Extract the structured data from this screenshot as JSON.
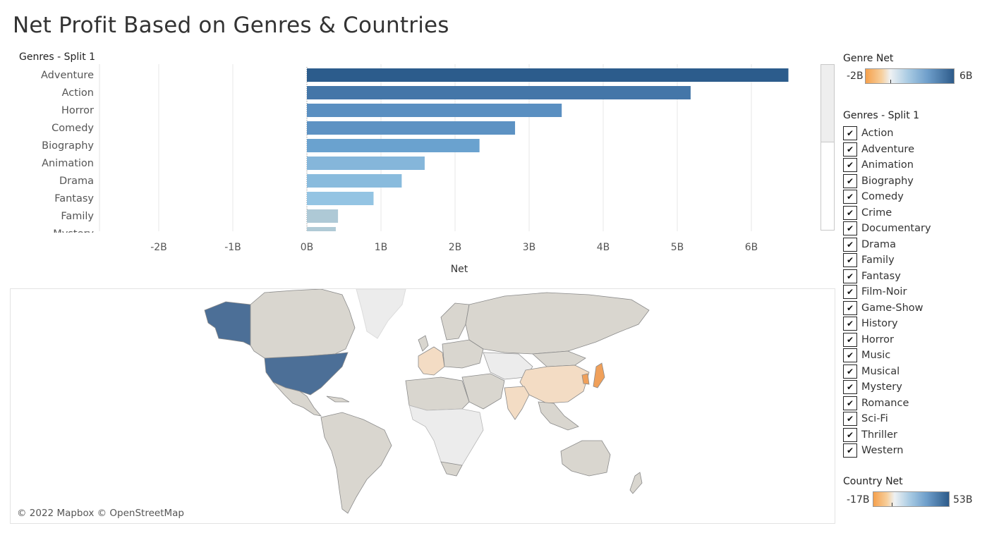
{
  "title": "Net Profit Based on Genres & Countries",
  "chart_data": {
    "type": "bar",
    "orientation": "horizontal",
    "row_header": "Genres - Split 1",
    "categories": [
      "Adventure",
      "Action",
      "Horror",
      "Comedy",
      "Biography",
      "Animation",
      "Drama",
      "Fantasy",
      "Family",
      "Mystery"
    ],
    "values": [
      6.5,
      5.18,
      3.44,
      2.81,
      2.33,
      1.59,
      1.28,
      0.9,
      0.42,
      0.39
    ],
    "xlabel": "Net",
    "xlim": [
      -2,
      6.5
    ],
    "xticks": [
      "-2B",
      "-1B",
      "0B",
      "1B",
      "2B",
      "3B",
      "4B",
      "5B",
      "6B"
    ],
    "colors": [
      "#2c5c8c",
      "#4476a8",
      "#5a8fc1",
      "#5d92c3",
      "#6aa2cf",
      "#85b6da",
      "#89bbdd",
      "#94c4e3",
      "#aec9d6",
      "#b0cad6"
    ]
  },
  "map": {
    "credit": "© 2022 Mapbox © OpenStreetMap",
    "colors": {
      "land": "#d9d6cf",
      "nodata": "#ececec",
      "usa": "#4c6f97",
      "border": "#9a9a9a",
      "orange_light": "#f3dcc4",
      "orange": "#f0a05a"
    }
  },
  "genre_legend": {
    "title": "Genre Net",
    "min": "-2B",
    "max": "6B"
  },
  "filter": {
    "title": "Genres - Split 1",
    "items": [
      "Action",
      "Adventure",
      "Animation",
      "Biography",
      "Comedy",
      "Crime",
      "Documentary",
      "Drama",
      "Family",
      "Fantasy",
      "Film-Noir",
      "Game-Show",
      "History",
      "Horror",
      "Music",
      "Musical",
      "Mystery",
      "Romance",
      "Sci-Fi",
      "Thriller",
      "Western"
    ],
    "check_glyph": "✔"
  },
  "country_legend": {
    "title": "Country Net",
    "min": "-17B",
    "max": "53B"
  }
}
